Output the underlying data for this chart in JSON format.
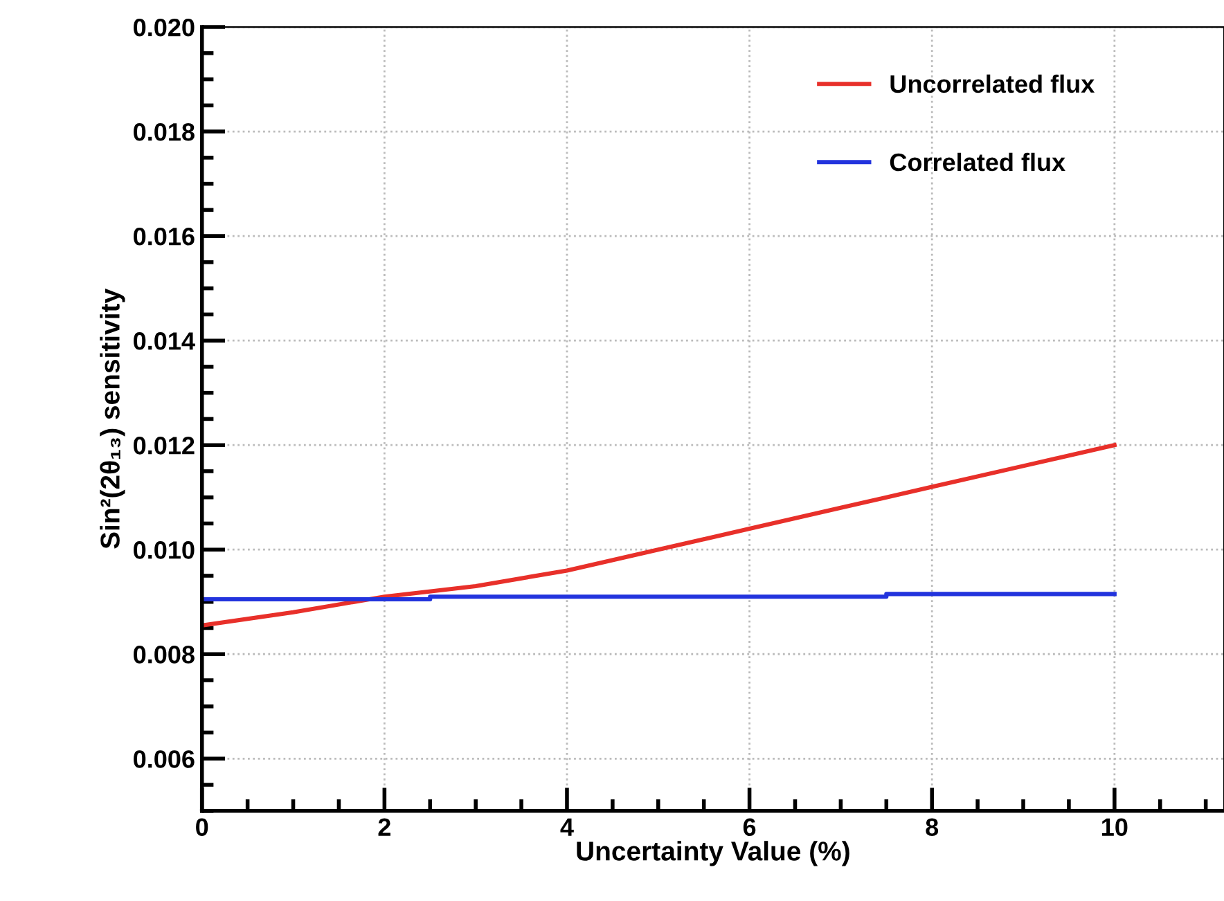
{
  "chart_data": {
    "type": "line",
    "xlabel": "Uncertainty Value (%)",
    "ylabel": "Sin²(2θ₁₃) sensitivity",
    "xlim": [
      0,
      11.2
    ],
    "xticks": [
      0,
      2,
      4,
      6,
      8,
      10
    ],
    "ylim": [
      0.005,
      0.02
    ],
    "yticks": [
      {
        "value": 0.006,
        "label": "0.006"
      },
      {
        "value": 0.008,
        "label": "0.008"
      },
      {
        "value": 0.01,
        "label": "0.010"
      },
      {
        "value": 0.012,
        "label": "0.012"
      },
      {
        "value": 0.014,
        "label": "0.014"
      },
      {
        "value": 0.016,
        "label": "0.016"
      },
      {
        "value": 0.018,
        "label": "0.018"
      },
      {
        "value": 0.02,
        "label": "0.020"
      }
    ],
    "grid": true,
    "legend": "top right",
    "line_style": "solid",
    "marker": "none",
    "series": [
      {
        "name": "Uncorrelated flux",
        "color": "#e8302a",
        "x": [
          0,
          1,
          2,
          3,
          4,
          5,
          6,
          7,
          8,
          9,
          10
        ],
        "values": [
          0.00855,
          0.0088,
          0.0091,
          0.0093,
          0.0096,
          0.01,
          0.0104,
          0.0108,
          0.0112,
          0.0116,
          0.012
        ]
      },
      {
        "name": "Correlated flux",
        "color": "#2233dd",
        "x": [
          0,
          2.5,
          2.5,
          7.5,
          7.5,
          10
        ],
        "values": [
          0.00905,
          0.00905,
          0.0091,
          0.0091,
          0.00915,
          0.00915
        ]
      }
    ]
  }
}
